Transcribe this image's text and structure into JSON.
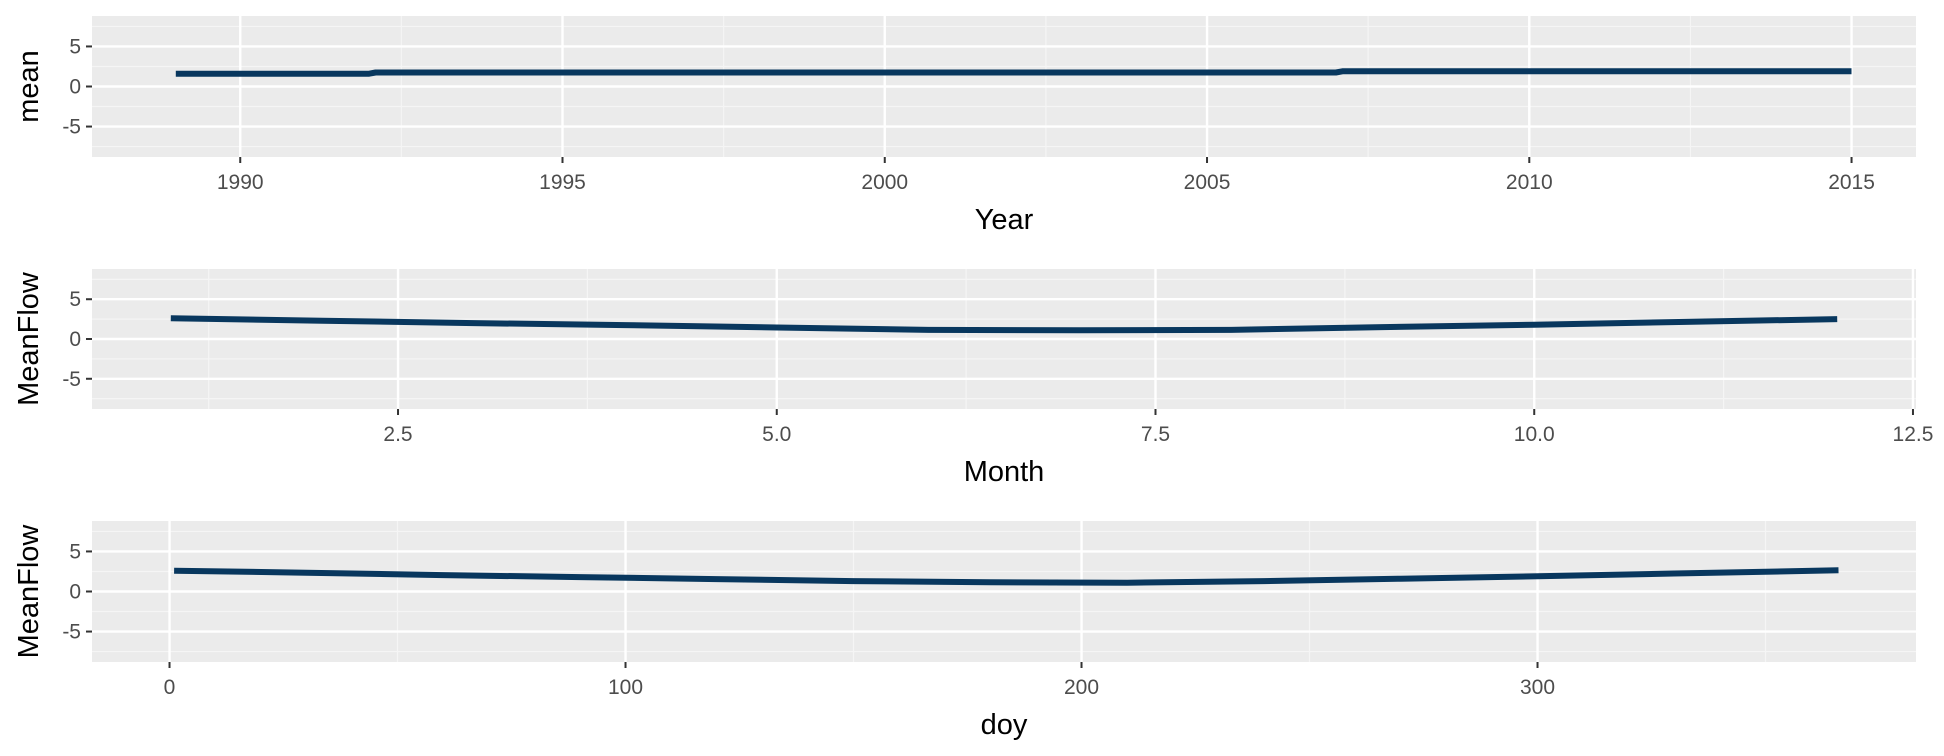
{
  "colors": {
    "panel_background": "#EBEBEB",
    "grid_major": "#FFFFFF",
    "grid_minor": "#F5F5F5",
    "line": "#08375E",
    "tick_text": "#4D4D4D",
    "axis_text": "#000000"
  },
  "chart_data": [
    {
      "type": "line",
      "xlabel": "Year",
      "ylabel": "mean",
      "xlim": [
        1987.7,
        2016.0
      ],
      "ylim": [
        -8.8,
        8.8
      ],
      "xticks": [
        {
          "value": 1990,
          "label": "1990"
        },
        {
          "value": 1995,
          "label": "1995"
        },
        {
          "value": 2000,
          "label": "2000"
        },
        {
          "value": 2005,
          "label": "2005"
        },
        {
          "value": 2010,
          "label": "2010"
        },
        {
          "value": 2015,
          "label": "2015"
        }
      ],
      "yticks": [
        {
          "value": 5,
          "label": "5"
        },
        {
          "value": 0,
          "label": "0"
        },
        {
          "value": -5,
          "label": "-5"
        }
      ],
      "grid": true,
      "series": [
        {
          "x": [
            1989,
            1992,
            1992.1,
            2007,
            2007.1,
            2015
          ],
          "y": [
            1.6,
            1.6,
            1.75,
            1.75,
            1.9,
            1.9
          ]
        }
      ]
    },
    {
      "type": "line",
      "xlabel": "Month",
      "ylabel": "MeanFlow",
      "xlim": [
        0.48,
        12.52
      ],
      "ylim": [
        -8.8,
        8.8
      ],
      "xticks": [
        {
          "value": 2.5,
          "label": "2.5"
        },
        {
          "value": 5.0,
          "label": "5.0"
        },
        {
          "value": 7.5,
          "label": "7.5"
        },
        {
          "value": 10.0,
          "label": "10.0"
        },
        {
          "value": 12.5,
          "label": "12.5"
        }
      ],
      "yticks": [
        {
          "value": 5,
          "label": "5"
        },
        {
          "value": 0,
          "label": "0"
        },
        {
          "value": -5,
          "label": "-5"
        }
      ],
      "grid": true,
      "series": [
        {
          "x": [
            1,
            2,
            3,
            4,
            5,
            6,
            7,
            8,
            9,
            10,
            11,
            12
          ],
          "y": [
            2.6,
            2.3,
            2.0,
            1.75,
            1.45,
            1.15,
            1.1,
            1.15,
            1.5,
            1.8,
            2.15,
            2.5
          ]
        }
      ]
    },
    {
      "type": "line",
      "xlabel": "doy",
      "ylabel": "MeanFlow",
      "xlim": [
        -17,
        383
      ],
      "ylim": [
        -8.8,
        8.8
      ],
      "xticks": [
        {
          "value": 0,
          "label": "0"
        },
        {
          "value": 100,
          "label": "100"
        },
        {
          "value": 200,
          "label": "200"
        },
        {
          "value": 300,
          "label": "300"
        }
      ],
      "yticks": [
        {
          "value": 5,
          "label": "5"
        },
        {
          "value": 0,
          "label": "0"
        },
        {
          "value": -5,
          "label": "-5"
        }
      ],
      "grid": true,
      "series": [
        {
          "x": [
            1,
            30,
            60,
            90,
            120,
            150,
            180,
            210,
            240,
            270,
            300,
            330,
            366
          ],
          "y": [
            2.6,
            2.35,
            2.05,
            1.8,
            1.55,
            1.3,
            1.15,
            1.1,
            1.3,
            1.6,
            1.9,
            2.25,
            2.65
          ]
        }
      ]
    }
  ]
}
